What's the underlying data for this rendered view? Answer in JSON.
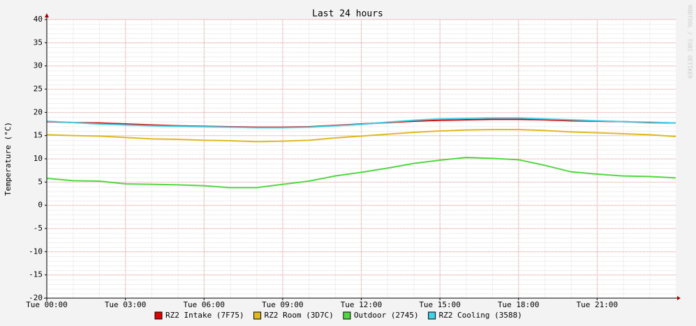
{
  "chart_data": {
    "type": "line",
    "title": "Last 24 hours",
    "y_label": "Temperature (°C)",
    "watermark": "RRDTOOL / TOBI OETIKER",
    "x": [
      0,
      1,
      2,
      3,
      4,
      5,
      6,
      7,
      8,
      9,
      10,
      11,
      12,
      13,
      14,
      15,
      16,
      17,
      18,
      19,
      20,
      21,
      22,
      23,
      24
    ],
    "xlim": [
      0,
      24
    ],
    "xticks": [
      {
        "value": 0,
        "label": "Tue 00:00"
      },
      {
        "value": 3,
        "label": "Tue 03:00"
      },
      {
        "value": 6,
        "label": "Tue 06:00"
      },
      {
        "value": 9,
        "label": "Tue 09:00"
      },
      {
        "value": 12,
        "label": "Tue 12:00"
      },
      {
        "value": 15,
        "label": "Tue 15:00"
      },
      {
        "value": 18,
        "label": "Tue 18:00"
      },
      {
        "value": 21,
        "label": "Tue 21:00"
      }
    ],
    "ylim": [
      -20,
      40
    ],
    "yticks": [
      -20,
      -15,
      -10,
      -5,
      0,
      5,
      10,
      15,
      20,
      25,
      30,
      35,
      40
    ],
    "grid": true,
    "series": [
      {
        "name": "RZ2 Intake (7F75)",
        "color": "#e00000",
        "values": [
          18,
          17.8,
          17.7,
          17.5,
          17.3,
          17.1,
          17,
          16.9,
          16.8,
          16.8,
          16.9,
          17.2,
          17.5,
          17.8,
          18.1,
          18.3,
          18.4,
          18.5,
          18.5,
          18.4,
          18.2,
          18.1,
          18,
          17.8,
          17.7
        ]
      },
      {
        "name": "RZ2 Room (3D7C)",
        "color": "#e0b820",
        "values": [
          15.2,
          15,
          14.9,
          14.6,
          14.3,
          14.2,
          14,
          13.9,
          13.7,
          13.8,
          14,
          14.5,
          14.9,
          15.3,
          15.7,
          16,
          16.2,
          16.3,
          16.3,
          16.1,
          15.8,
          15.6,
          15.4,
          15.2,
          14.8
        ]
      },
      {
        "name": "Outdoor (2745)",
        "color": "#50d840",
        "values": [
          5.8,
          5.3,
          5.2,
          4.6,
          4.5,
          4.4,
          4.2,
          3.8,
          3.8,
          4.5,
          5.2,
          6.3,
          7.1,
          8,
          9,
          9.7,
          10.3,
          10.1,
          9.8,
          8.6,
          7.2,
          6.7,
          6.3,
          6.2,
          5.9
        ]
      },
      {
        "name": "RZ2 Cooling (3588)",
        "color": "#40d0e8",
        "values": [
          18.1,
          17.8,
          17.5,
          17.3,
          17.1,
          17,
          16.9,
          16.8,
          16.7,
          16.7,
          16.8,
          17.1,
          17.4,
          17.9,
          18.3,
          18.6,
          18.7,
          18.8,
          18.8,
          18.6,
          18.4,
          18.2,
          18,
          17.9,
          17.7
        ]
      }
    ]
  }
}
